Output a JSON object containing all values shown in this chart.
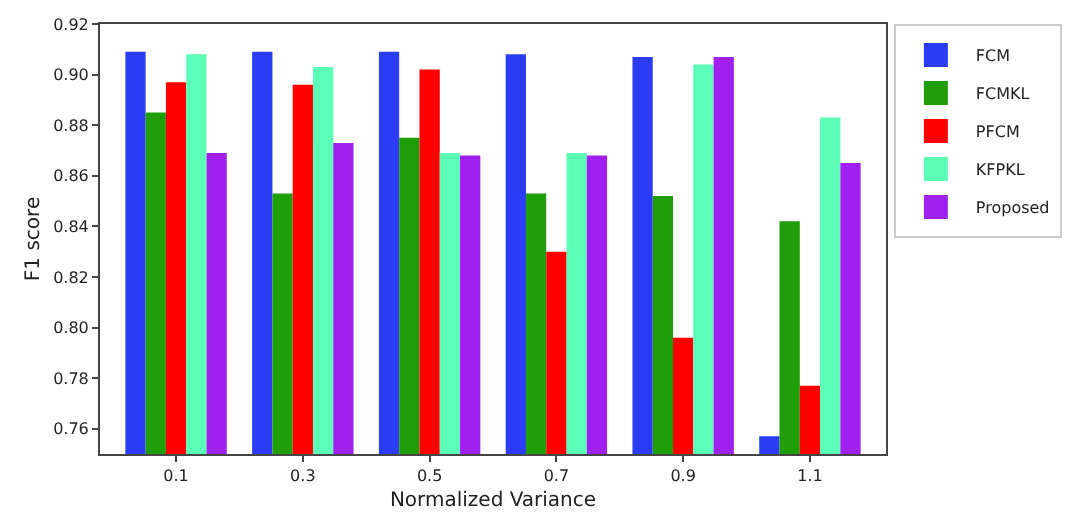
{
  "chart_data": {
    "type": "bar",
    "xlabel": "Normalized Variance",
    "ylabel": "F1 score",
    "categories": [
      "0.1",
      "0.3",
      "0.5",
      "0.7",
      "0.9",
      "1.1"
    ],
    "series": [
      {
        "name": "FCM",
        "color": "#2b3cf5",
        "values": [
          0.909,
          0.909,
          0.909,
          0.908,
          0.907,
          0.757
        ]
      },
      {
        "name": "FCMKL",
        "color": "#1f9e0a",
        "values": [
          0.885,
          0.853,
          0.875,
          0.853,
          0.852,
          0.842
        ]
      },
      {
        "name": "PFCM",
        "color": "#ff0000",
        "values": [
          0.897,
          0.896,
          0.902,
          0.83,
          0.796,
          0.777
        ]
      },
      {
        "name": "KFPKL",
        "color": "#5cffb8",
        "values": [
          0.908,
          0.903,
          0.869,
          0.869,
          0.904,
          0.883
        ]
      },
      {
        "name": "Proposed",
        "color": "#a020f0",
        "values": [
          0.869,
          0.873,
          0.868,
          0.868,
          0.907,
          0.865
        ]
      }
    ],
    "ylim": [
      0.75,
      0.92
    ],
    "yticks": [
      0.76,
      0.78,
      {
        "value": 0.8,
        "label": "0.80"
      },
      0.82,
      0.84,
      0.86,
      0.88,
      {
        "value": 0.9,
        "label": "0.90"
      },
      0.92
    ],
    "legend": "top right",
    "grid": false
  }
}
